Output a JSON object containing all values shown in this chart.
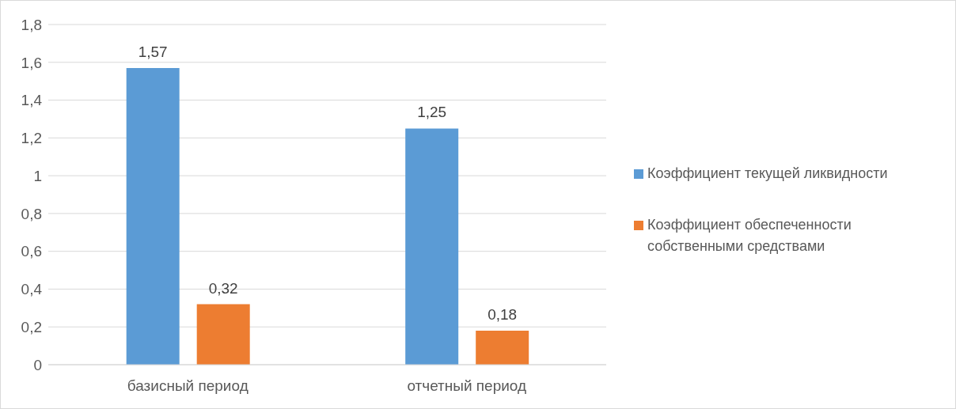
{
  "chart_data": {
    "type": "bar",
    "categories": [
      "базисный период",
      "отчетный период"
    ],
    "series": [
      {
        "name": "Коэффициент текущей ликвидности",
        "color": "#5b9bd5",
        "values": [
          1.57,
          1.25
        ],
        "value_labels": [
          "1,57",
          "1,25"
        ]
      },
      {
        "name": "Коэффициент обеспеченности собственными средствами",
        "color": "#ed7d31",
        "values": [
          0.32,
          0.18
        ],
        "value_labels": [
          "0,32",
          "0,18"
        ]
      }
    ],
    "ylim": [
      0,
      1.8
    ],
    "yticks": [
      0,
      {
        "value": 0.2,
        "label": "0,2"
      },
      {
        "value": 0.4,
        "label": "0,4"
      },
      {
        "value": 0.6,
        "label": "0,6"
      },
      {
        "value": 0.8,
        "label": "0,8"
      },
      1,
      {
        "value": 1.2,
        "label": "1,2"
      },
      {
        "value": 1.4,
        "label": "1,4"
      },
      {
        "value": 1.6,
        "label": "1,6"
      },
      {
        "value": 1.8,
        "label": "1,8"
      }
    ],
    "grid": "y",
    "legend": "right"
  }
}
